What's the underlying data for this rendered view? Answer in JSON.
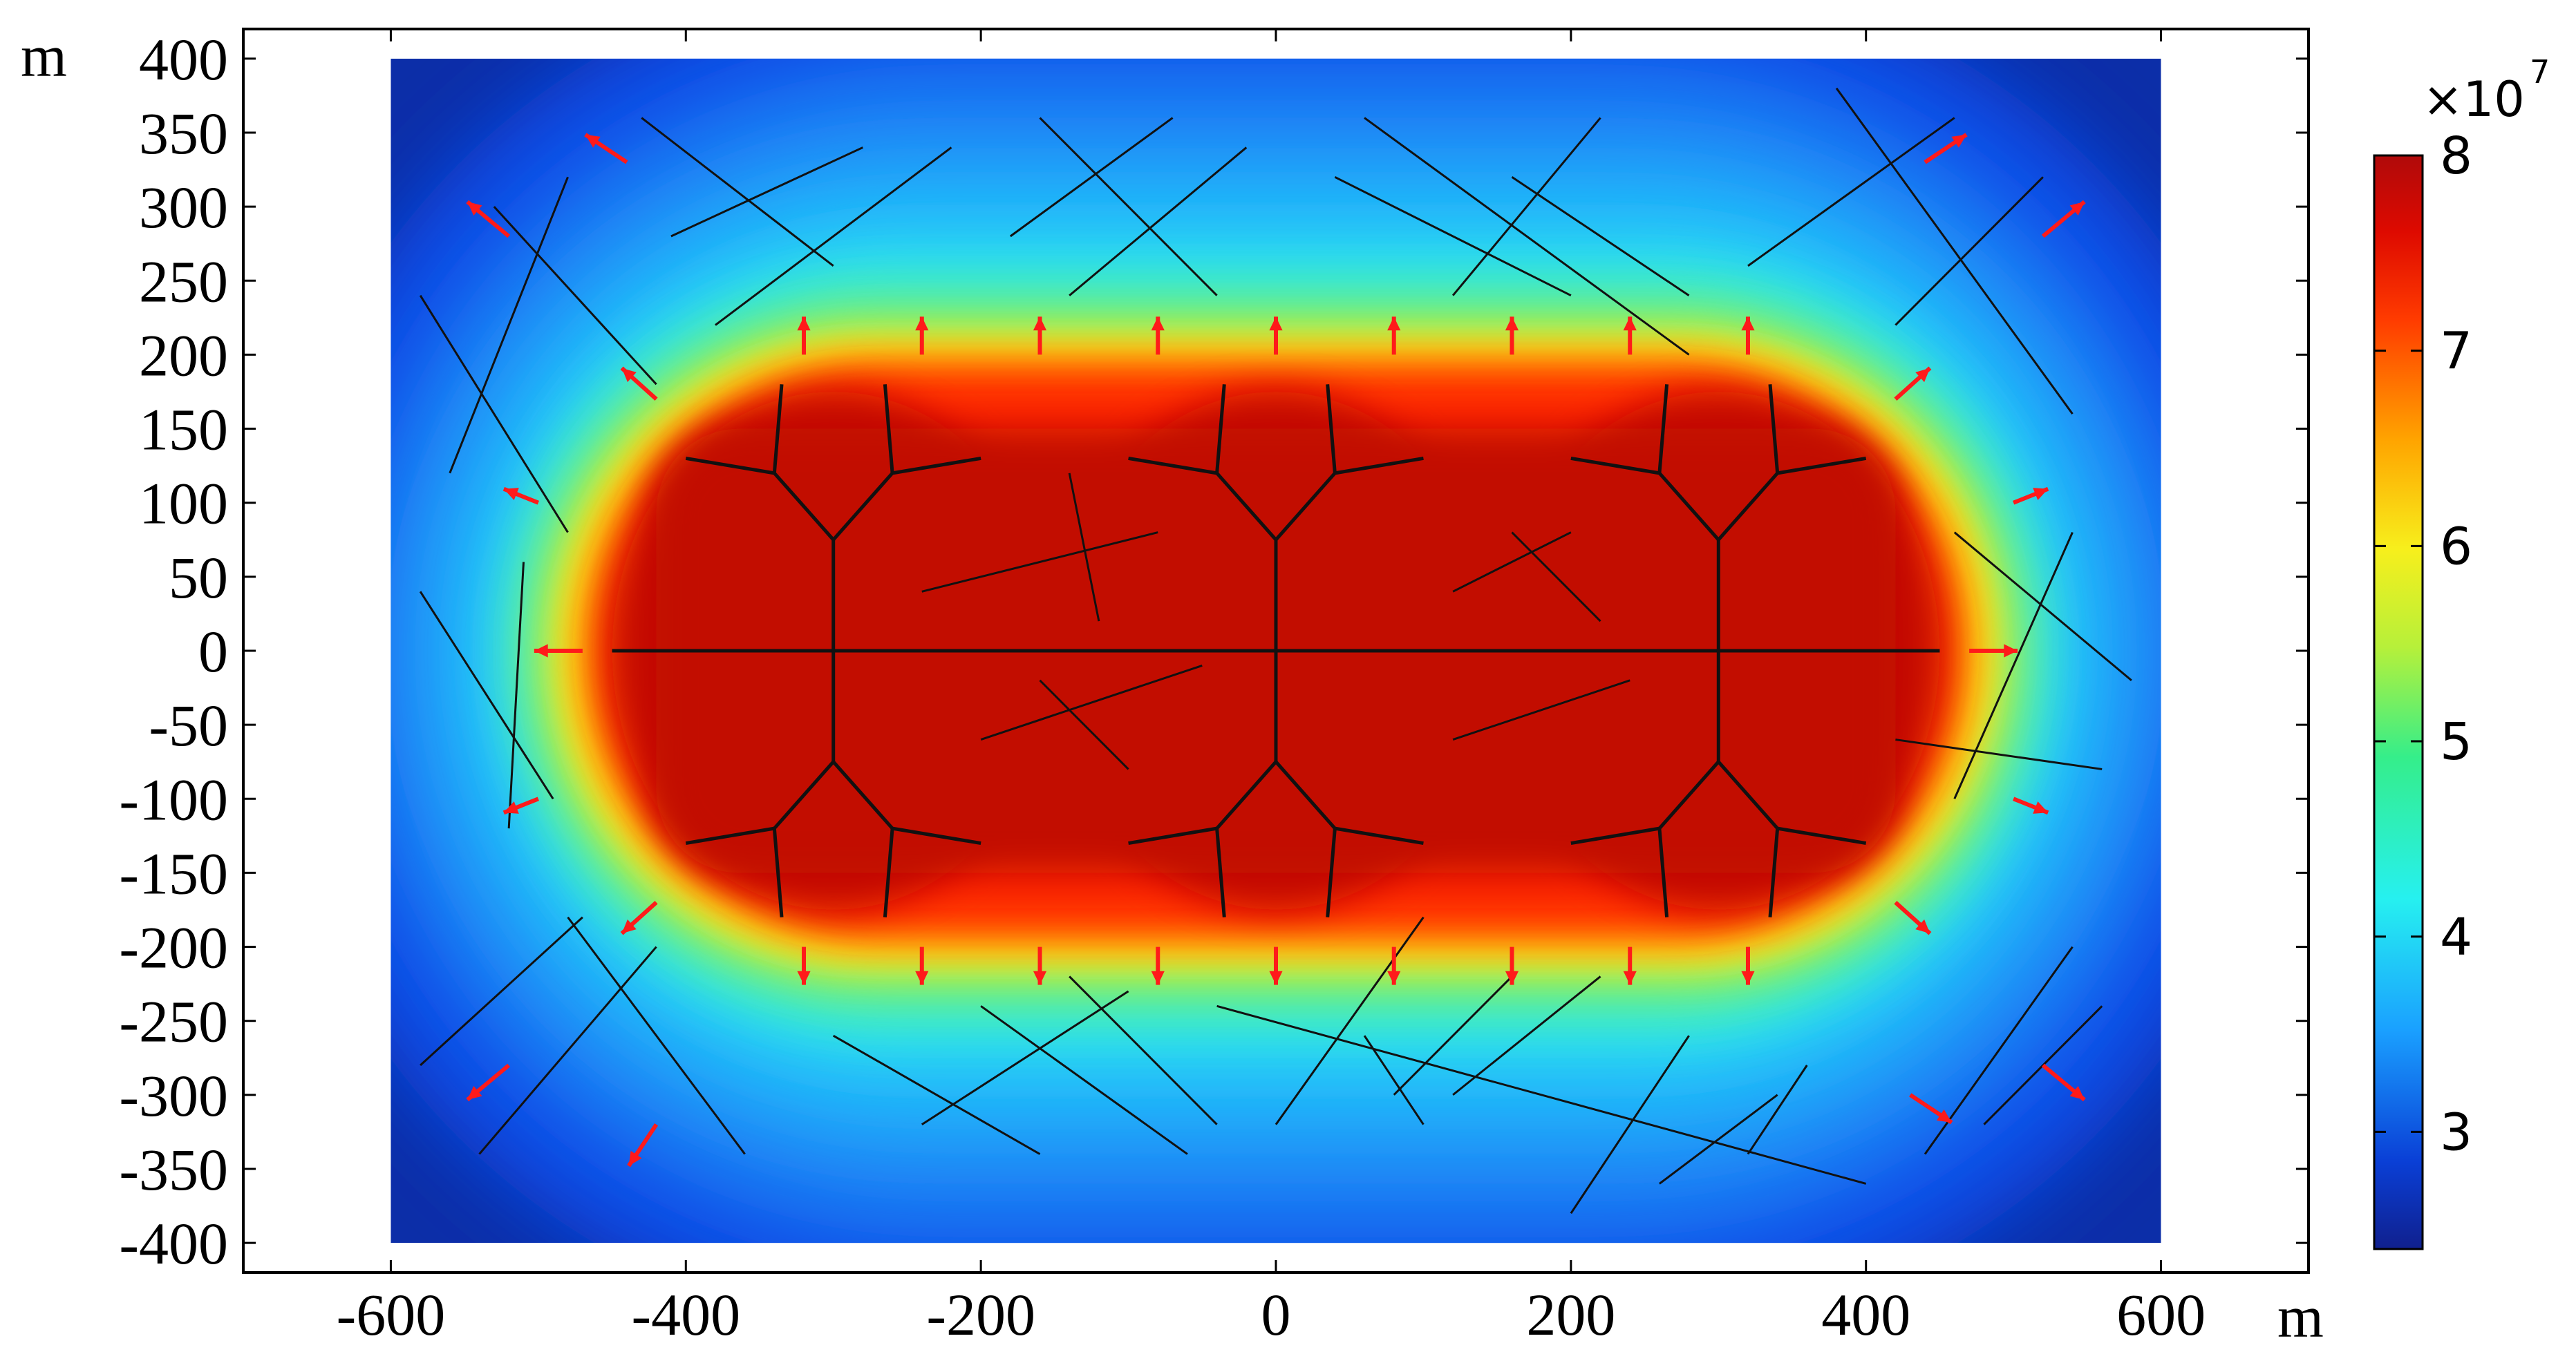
{
  "chart_data": {
    "type": "heatmap",
    "title": "",
    "x_unit": "m",
    "y_unit": "m",
    "xlim": [
      -700,
      700
    ],
    "ylim": [
      -420,
      420
    ],
    "domain": {
      "x": [
        -600,
        600
      ],
      "y": [
        -400,
        400
      ]
    },
    "x_ticks": [
      -600,
      -400,
      -200,
      0,
      200,
      400,
      600
    ],
    "x_tick_labels": [
      "-600",
      "-400",
      "-200",
      "0",
      "200",
      "400",
      "600"
    ],
    "y_ticks": [
      400,
      350,
      300,
      250,
      200,
      150,
      100,
      50,
      0,
      -50,
      -100,
      -150,
      -200,
      -250,
      -300,
      -350,
      -400
    ],
    "y_tick_labels": [
      "400",
      "350",
      "300",
      "250",
      "200",
      "150",
      "100",
      "50",
      "0",
      "-50",
      "-100",
      "-150",
      "-200",
      "-250",
      "-300",
      "-350",
      "-400"
    ],
    "colorbar": {
      "multiplier": "×10",
      "exponent": "7",
      "range": [
        2.4,
        8.0
      ],
      "ticks": [
        3,
        4,
        5,
        6,
        7,
        8
      ],
      "tick_labels": [
        "3",
        "4",
        "5",
        "6",
        "7",
        "8"
      ],
      "colormap": "rainbow"
    },
    "field_summary": {
      "max_value": 8.0,
      "min_value": 2.4,
      "high_region": "stadium-shaped zone from x=-470 to 470 m, y=-190 to 190 m"
    },
    "fracture_tree_centers_x": [
      -300,
      0,
      300
    ],
    "horizontal_well": {
      "x1": -450,
      "x2": 450,
      "y": 0
    },
    "natural_fractures": [
      [
        -560,
        120,
        -480,
        320
      ],
      [
        -530,
        300,
        -420,
        180
      ],
      [
        -580,
        240,
        -480,
        80
      ],
      [
        -430,
        360,
        -300,
        260
      ],
      [
        -410,
        280,
        -280,
        340
      ],
      [
        -380,
        220,
        -220,
        340
      ],
      [
        -180,
        280,
        -70,
        360
      ],
      [
        -160,
        360,
        -40,
        240
      ],
      [
        -140,
        240,
        -20,
        340
      ],
      [
        60,
        360,
        280,
        200
      ],
      [
        40,
        320,
        200,
        240
      ],
      [
        120,
        240,
        220,
        360
      ],
      [
        160,
        320,
        280,
        240
      ],
      [
        320,
        260,
        460,
        360
      ],
      [
        380,
        380,
        540,
        160
      ],
      [
        420,
        220,
        520,
        320
      ],
      [
        -240,
        40,
        -80,
        80
      ],
      [
        -140,
        120,
        -120,
        20
      ],
      [
        -200,
        -60,
        -50,
        -10
      ],
      [
        -160,
        -20,
        -100,
        -80
      ],
      [
        120,
        40,
        200,
        80
      ],
      [
        160,
        80,
        220,
        20
      ],
      [
        120,
        -60,
        240,
        -20
      ],
      [
        460,
        -100,
        540,
        80
      ],
      [
        460,
        80,
        580,
        -20
      ],
      [
        420,
        -60,
        560,
        -80
      ],
      [
        -580,
        40,
        -490,
        -100
      ],
      [
        -520,
        -120,
        -510,
        60
      ],
      [
        -580,
        -280,
        -470,
        -180
      ],
      [
        -480,
        -180,
        -360,
        -340
      ],
      [
        -420,
        -200,
        -540,
        -340
      ],
      [
        -300,
        -260,
        -160,
        -340
      ],
      [
        -240,
        -320,
        -100,
        -230
      ],
      [
        -200,
        -240,
        -60,
        -340
      ],
      [
        -140,
        -220,
        -40,
        -320
      ],
      [
        0,
        -320,
        100,
        -180
      ],
      [
        60,
        -260,
        100,
        -320
      ],
      [
        80,
        -300,
        160,
        -220
      ],
      [
        -40,
        -240,
        400,
        -360
      ],
      [
        120,
        -300,
        220,
        -220
      ],
      [
        200,
        -380,
        280,
        -260
      ],
      [
        260,
        -360,
        340,
        -300
      ],
      [
        320,
        -340,
        360,
        -280
      ],
      [
        440,
        -340,
        540,
        -200
      ],
      [
        480,
        -320,
        560,
        -240
      ]
    ]
  }
}
